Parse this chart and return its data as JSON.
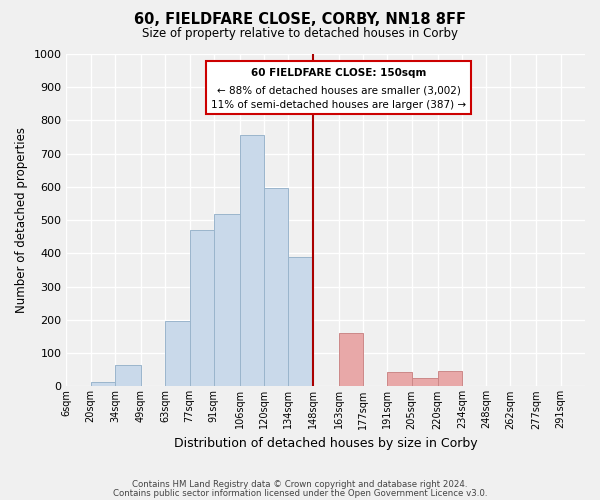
{
  "title": "60, FIELDFARE CLOSE, CORBY, NN18 8FF",
  "subtitle": "Size of property relative to detached houses in Corby",
  "xlabel": "Distribution of detached houses by size in Corby",
  "ylabel": "Number of detached properties",
  "categories": [
    "6sqm",
    "20sqm",
    "34sqm",
    "49sqm",
    "63sqm",
    "77sqm",
    "91sqm",
    "106sqm",
    "120sqm",
    "134sqm",
    "148sqm",
    "163sqm",
    "177sqm",
    "191sqm",
    "205sqm",
    "220sqm",
    "234sqm",
    "248sqm",
    "262sqm",
    "277sqm",
    "291sqm"
  ],
  "values": [
    0,
    13,
    63,
    0,
    196,
    470,
    519,
    756,
    596,
    390,
    0,
    160,
    0,
    43,
    25,
    45,
    0,
    0,
    0,
    0,
    0
  ],
  "bar_colors_below": "#c9d9ea",
  "bar_colors_above": "#e8a8a8",
  "bar_edge_below": "#9ab5cc",
  "bar_edge_above": "#cc8888",
  "property_line_color": "#aa0000",
  "annotation_title": "60 FIELDFARE CLOSE: 150sqm",
  "annotation_line1": "← 88% of detached houses are smaller (3,002)",
  "annotation_line2": "11% of semi-detached houses are larger (387) →",
  "annotation_box_color": "#ffffff",
  "annotation_box_edge": "#cc0000",
  "ylim": [
    0,
    1000
  ],
  "yticks": [
    0,
    100,
    200,
    300,
    400,
    500,
    600,
    700,
    800,
    900,
    1000
  ],
  "footer1": "Contains HM Land Registry data © Crown copyright and database right 2024.",
  "footer2": "Contains public sector information licensed under the Open Government Licence v3.0.",
  "background_color": "#f0f0f0",
  "grid_color": "#ffffff",
  "bin_edges": [
    6,
    20,
    34,
    49,
    63,
    77,
    91,
    106,
    120,
    134,
    148,
    163,
    177,
    191,
    205,
    220,
    234,
    248,
    262,
    277,
    291,
    305
  ],
  "property_sqm": 150,
  "vline_x": 148
}
